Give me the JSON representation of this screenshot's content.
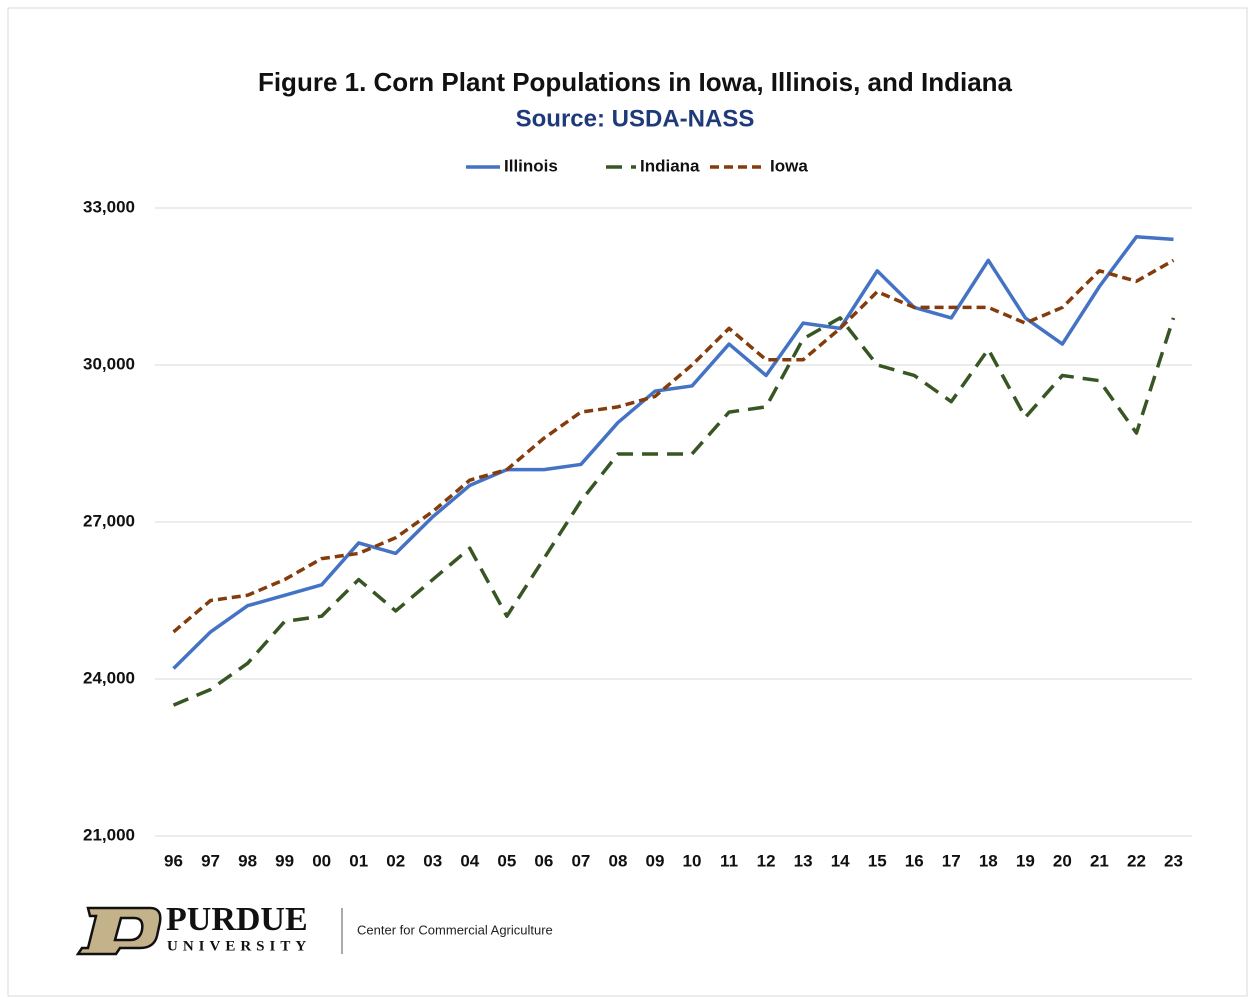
{
  "chart_data": {
    "type": "line",
    "title": "Figure 1.  Corn Plant Populations in Iowa, Illinois, and Indiana",
    "subtitle": "Source: USDA-NASS",
    "categories": [
      "96",
      "97",
      "98",
      "99",
      "00",
      "01",
      "02",
      "03",
      "04",
      "05",
      "06",
      "07",
      "08",
      "09",
      "10",
      "11",
      "12",
      "13",
      "14",
      "15",
      "16",
      "17",
      "18",
      "19",
      "20",
      "21",
      "22",
      "23"
    ],
    "series": [
      {
        "name": "Illinois",
        "color": "#4472c4",
        "dash": "solid",
        "values": [
          24200,
          24900,
          25400,
          25600,
          25800,
          26600,
          26400,
          27100,
          27700,
          28000,
          28000,
          28100,
          28900,
          29500,
          29600,
          30400,
          29800,
          30800,
          30700,
          31800,
          31100,
          30900,
          32000,
          30900,
          30400,
          31500,
          32450,
          32400
        ]
      },
      {
        "name": "Indiana",
        "color": "#375623",
        "dash": "long-dash",
        "values": [
          23500,
          23800,
          24300,
          25100,
          25200,
          25900,
          25300,
          25900,
          26500,
          25200,
          26300,
          27400,
          28300,
          28300,
          28300,
          29100,
          29200,
          30500,
          30900,
          30000,
          29800,
          29300,
          30300,
          29000,
          29800,
          29700,
          28700,
          30900
        ]
      },
      {
        "name": "Iowa",
        "color": "#843c0c",
        "dash": "short-dash",
        "values": [
          24900,
          25500,
          25600,
          25900,
          26300,
          26400,
          26700,
          27200,
          27800,
          28000,
          28600,
          29100,
          29200,
          29400,
          30000,
          30700,
          30100,
          30100,
          30700,
          31400,
          31100,
          31100,
          31100,
          30800,
          31100,
          31800,
          31600,
          32000
        ]
      }
    ],
    "ylim": [
      21000,
      33000
    ],
    "yticks": [
      {
        "value": 21000,
        "label": "21,000"
      },
      {
        "value": 24000,
        "label": "24,000"
      },
      {
        "value": 27000,
        "label": "27,000"
      },
      {
        "value": 30000,
        "label": "30,000"
      },
      {
        "value": 33000,
        "label": "33,000"
      }
    ],
    "grid": true,
    "legend": "top"
  },
  "footer": {
    "logo_name": "PURDUE",
    "logo_sub": "UNIVERSITY",
    "center": "Center for Commercial Agriculture"
  }
}
